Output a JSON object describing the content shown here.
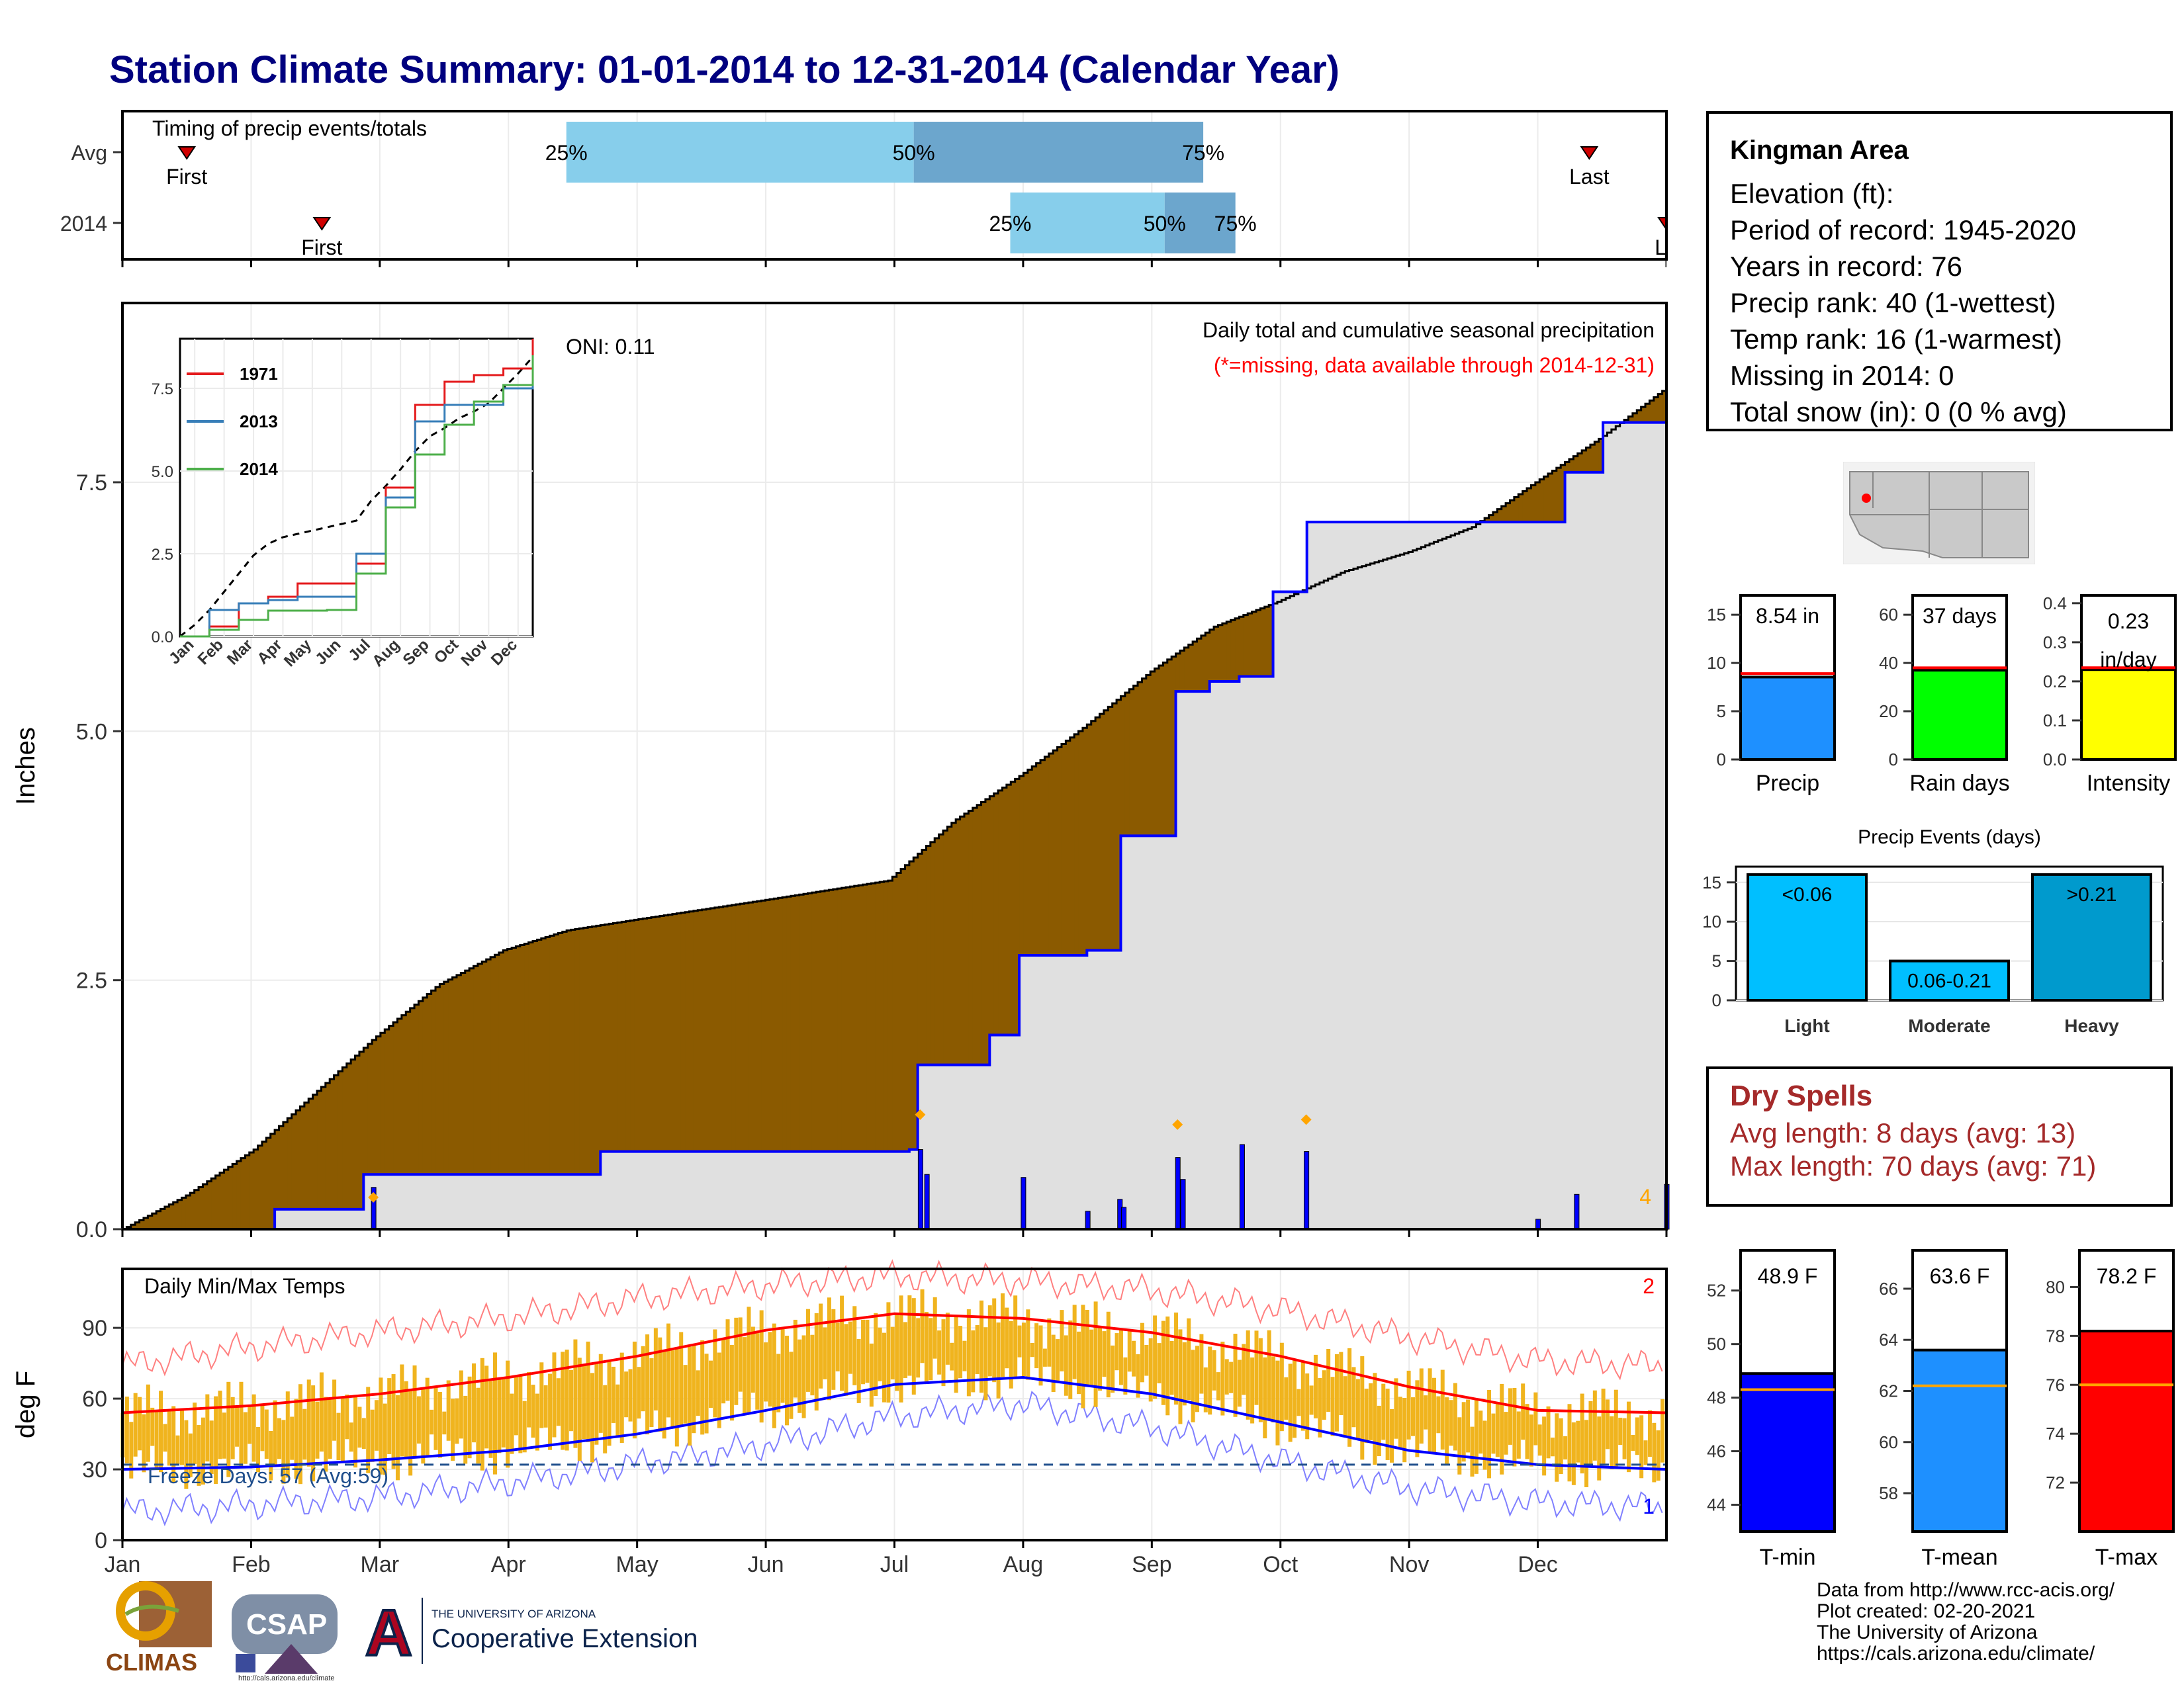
{
  "title": "Station Climate Summary: 01-01-2014 to 12-31-2014 (Calendar Year)",
  "timing": {
    "label": "Timing of precip events/totals",
    "rows": [
      {
        "name": "Avg",
        "first_month": 0.5,
        "p25": 3.45,
        "p50": 6.15,
        "p75": 8.4,
        "last_month": 11.4,
        "first_label": "First",
        "last_label": "Last",
        "pct_labels": [
          "25%",
          "50%",
          "75%"
        ]
      },
      {
        "name": "2014",
        "first_month": 1.55,
        "p25": 6.9,
        "p50": 8.1,
        "p75": 8.65,
        "last_month": 12.0,
        "first_label": "First",
        "last_label": "La",
        "pct_labels": [
          "25%",
          "50%",
          "75%"
        ]
      }
    ]
  },
  "precip_panel": {
    "ylabel": "Inches",
    "yticks": [
      "0.0",
      "2.5",
      "5.0",
      "7.5"
    ],
    "oni": "ONI: 0.11",
    "note1": "Daily total and cumulative seasonal precipitation",
    "note2": "(*=missing, data available through 2014-12-31)",
    "corner_count": "4",
    "colors": {
      "below": "#8b5a00",
      "above": "#008a00",
      "obs": "#e0e0e0",
      "line": "#0000ff",
      "diamond": "#ffa500"
    }
  },
  "inset": {
    "yticks": [
      "0.0",
      "2.5",
      "5.0",
      "7.5"
    ],
    "xticks": [
      "Jan",
      "Feb",
      "Mar",
      "Apr",
      "May",
      "Jun",
      "Jul",
      "Aug",
      "Sep",
      "Oct",
      "Nov",
      "Dec"
    ],
    "legend": [
      {
        "name": "1971",
        "color": "#e41a1c"
      },
      {
        "name": "2013",
        "color": "#377eb8"
      },
      {
        "name": "2014",
        "color": "#4daf4a"
      }
    ]
  },
  "temp_panel": {
    "ylabel": "deg F",
    "label": "Daily Min/Max Temps",
    "yticks": [
      "0",
      "30",
      "60",
      "90"
    ],
    "freeze": "Freeze Days: 57 (Avg:59)",
    "count_top": "2",
    "count_bottom": "1"
  },
  "months": [
    "Jan",
    "Feb",
    "Mar",
    "Apr",
    "May",
    "Jun",
    "Jul",
    "Aug",
    "Sep",
    "Oct",
    "Nov",
    "Dec"
  ],
  "station": {
    "name": "Kingman Area",
    "lines": [
      "Elevation (ft):",
      "Period of record: 1945-2020",
      "Years in record: 76",
      "Precip rank: 40 (1-wettest)",
      "Temp rank: 16 (1-warmest)",
      "Missing in 2014: 0",
      "Total snow (in): 0 (0 % avg)"
    ]
  },
  "summary_bars": [
    {
      "label": "Precip",
      "value_text": "8.54 in",
      "value": 8.54,
      "avg": 8.9,
      "ymax": 17,
      "ticks": [
        0,
        5,
        10,
        15
      ],
      "color": "#1e90ff"
    },
    {
      "label": "Rain days",
      "value_text": "37 days",
      "value": 37,
      "avg": 38,
      "ymax": 68,
      "ticks": [
        0,
        20,
        40,
        60
      ],
      "color": "#00ff00"
    },
    {
      "label": "Intensity",
      "value_text": "0.23 in/day",
      "value": 0.23,
      "avg": 0.235,
      "ymax": 0.42,
      "ticks": [
        "0.0",
        "0.1",
        "0.2",
        "0.3",
        "0.4"
      ],
      "color": "#ffff00"
    }
  ],
  "events": {
    "title": "Precip Events (days)",
    "ticks": [
      0,
      5,
      10,
      15
    ],
    "bars": [
      {
        "category": "Light",
        "label": "<0.06",
        "value": 16,
        "color": "#00bfff"
      },
      {
        "category": "Moderate",
        "label": "0.06-0.21",
        "value": 5,
        "color": "#00bfff"
      },
      {
        "category": "Heavy",
        "label": ">0.21",
        "value": 16,
        "color": "#009acd"
      }
    ]
  },
  "dry_spells": {
    "title": "Dry Spells",
    "avg": "Avg length: 8 days (avg: 13)",
    "max": "Max length: 70 days (avg: 71)"
  },
  "temp_bars": [
    {
      "label": "T-min",
      "value_text": "48.9 F",
      "value": 48.9,
      "avg": 48.3,
      "ymin": 43,
      "ymax": 53.5,
      "ticks": [
        44,
        46,
        48,
        50,
        52
      ],
      "color": "#0000ff"
    },
    {
      "label": "T-mean",
      "value_text": "63.6 F",
      "value": 63.6,
      "avg": 62.2,
      "ymin": 56.5,
      "ymax": 67.5,
      "ticks": [
        58,
        60,
        62,
        64,
        66
      ],
      "color": "#1e90ff"
    },
    {
      "label": "T-max",
      "value_text": "78.2 F",
      "value": 78.2,
      "avg": 76.0,
      "ymin": 70,
      "ymax": 81.5,
      "ticks": [
        72,
        74,
        76,
        78,
        80
      ],
      "color": "#ff0000"
    }
  ],
  "credits": [
    "Data from http://www.rcc-acis.org/",
    "Plot created: 02-20-2021",
    "The University of Arizona",
    "https://cals.arizona.edu/climate/"
  ],
  "logos": {
    "climas": "CLIMAS",
    "csap": "CSAP",
    "csap_url": "http://cals.arizona.edu/climate",
    "ua_small": "THE UNIVERSITY OF ARIZONA",
    "ua_big": "Cooperative Extension",
    "ua_letter": "A"
  },
  "chart_data": [
    {
      "type": "area",
      "title": "Daily total and cumulative seasonal precipitation",
      "ylabel": "Inches",
      "ylim": [
        0,
        9.3
      ],
      "series": [
        {
          "name": "avg_cumulative",
          "x_month": [
            0,
            0.5,
            1,
            1.5,
            2,
            2.5,
            3,
            3.5,
            4,
            4.5,
            5,
            5.5,
            6,
            6.5,
            7,
            7.5,
            8,
            8.5,
            9,
            9.5,
            10,
            10.5,
            11,
            11.5,
            12
          ],
          "values": [
            0,
            0.35,
            0.8,
            1.35,
            1.9,
            2.45,
            2.8,
            3.0,
            3.1,
            3.2,
            3.3,
            3.4,
            3.5,
            4.1,
            4.55,
            5.05,
            5.6,
            6.05,
            6.3,
            6.6,
            6.8,
            7.05,
            7.5,
            7.95,
            8.45
          ]
        },
        {
          "name": "2014",
          "x_month": [
            0,
            1.15,
            1.9,
            3.75,
            4.8,
            6.15,
            6.2,
            6.75,
            7.0,
            7.5,
            7.75,
            8.05,
            8.2,
            8.45,
            8.7,
            8.95,
            9.2,
            11.2,
            11.5,
            12
          ],
          "values": [
            0,
            0.2,
            0.55,
            0.78,
            0.78,
            0.8,
            1.65,
            1.95,
            2.75,
            2.8,
            3.95,
            3.95,
            5.4,
            5.5,
            5.55,
            6.4,
            7.1,
            7.6,
            8.1,
            8.54
          ]
        }
      ],
      "daily_bars": [
        [
          1.95,
          0.42
        ],
        [
          6.2,
          0.8
        ],
        [
          6.25,
          0.55
        ],
        [
          7.0,
          0.52
        ],
        [
          7.5,
          0.18
        ],
        [
          7.75,
          0.3
        ],
        [
          7.78,
          0.22
        ],
        [
          8.2,
          0.72
        ],
        [
          8.24,
          0.5
        ],
        [
          8.7,
          0.85
        ],
        [
          9.2,
          0.78
        ],
        [
          11.0,
          0.1
        ],
        [
          11.3,
          0.35
        ],
        [
          12.0,
          0.45
        ]
      ]
    },
    {
      "type": "line",
      "title": "",
      "ylim": [
        0,
        9
      ],
      "series": [
        {
          "name": "1971",
          "x_month": [
            0,
            1,
            2,
            3,
            4,
            5,
            6,
            7,
            8,
            9,
            10,
            11,
            12
          ],
          "values": [
            0,
            0.3,
            1.0,
            1.2,
            1.6,
            1.6,
            2.2,
            4.5,
            7.0,
            7.7,
            7.9,
            8.1,
            9.0
          ]
        },
        {
          "name": "2013",
          "x_month": [
            0,
            1,
            2,
            3,
            4,
            5,
            6,
            7,
            8,
            9,
            10,
            11,
            12
          ],
          "values": [
            0,
            0.8,
            1.0,
            1.1,
            1.2,
            1.2,
            2.5,
            4.2,
            6.5,
            7.0,
            7.0,
            7.5,
            8.3
          ]
        },
        {
          "name": "2014",
          "x_month": [
            0,
            1,
            2,
            3,
            4,
            5,
            6,
            7,
            8,
            9,
            10,
            11,
            12
          ],
          "values": [
            0,
            0.2,
            0.5,
            0.78,
            0.78,
            0.8,
            1.9,
            3.9,
            5.5,
            6.4,
            7.1,
            7.6,
            8.5
          ]
        }
      ]
    },
    {
      "type": "line",
      "title": "Daily Min/Max Temps",
      "ylabel": "deg F",
      "ylim": [
        0,
        115
      ],
      "series": [
        {
          "name": "avg_max",
          "x_month": [
            0,
            1,
            2,
            3,
            4,
            5,
            6,
            7,
            8,
            9,
            10,
            11,
            12
          ],
          "values": [
            54,
            57,
            62,
            69,
            78,
            89,
            96,
            94,
            88,
            78,
            65,
            55,
            54
          ]
        },
        {
          "name": "avg_min",
          "x_month": [
            0,
            1,
            2,
            3,
            4,
            5,
            6,
            7,
            8,
            9,
            10,
            11,
            12
          ],
          "values": [
            30,
            31,
            34,
            38,
            45,
            55,
            66,
            69,
            62,
            50,
            38,
            32,
            30
          ]
        },
        {
          "name": "record_high",
          "x_month": [
            0,
            1,
            2,
            3,
            4,
            5,
            6,
            7,
            8,
            9,
            10,
            11,
            12
          ],
          "values": [
            74,
            82,
            88,
            94,
            102,
            108,
            112,
            110,
            106,
            98,
            86,
            76,
            74
          ]
        },
        {
          "name": "record_low",
          "x_month": [
            0,
            1,
            2,
            3,
            4,
            5,
            6,
            7,
            8,
            9,
            10,
            11,
            12
          ],
          "values": [
            12,
            15,
            18,
            24,
            32,
            40,
            52,
            58,
            48,
            34,
            22,
            16,
            14
          ]
        }
      ],
      "freeze_line": 32
    }
  ]
}
